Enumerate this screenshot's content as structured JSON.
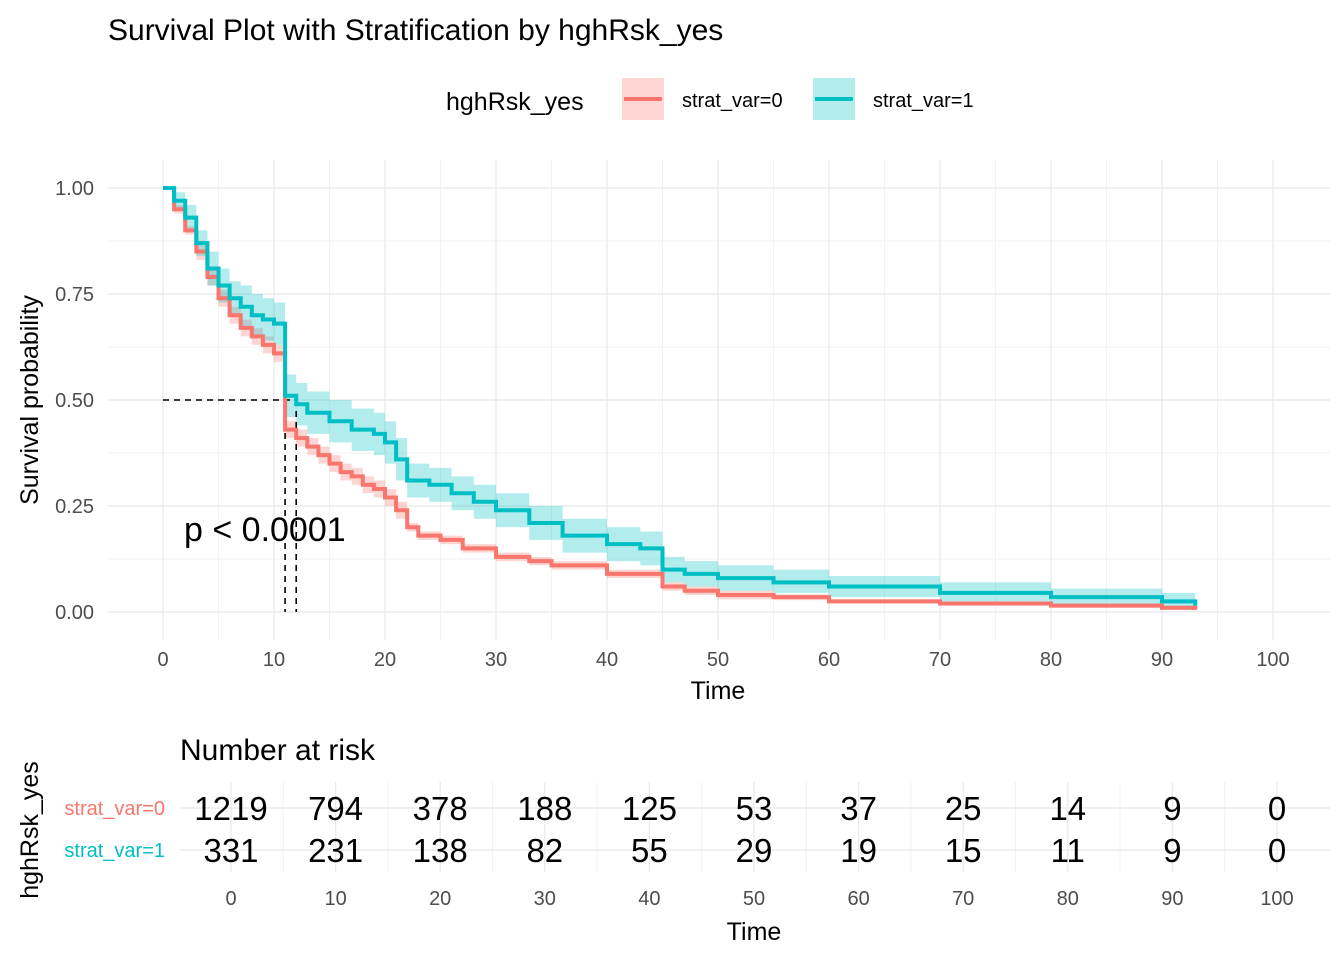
{
  "chart_data": [
    {
      "type": "line",
      "subtype": "kaplan-meier step",
      "title": "Survival Plot with Stratification by hghRsk_yes",
      "xlabel": "Time",
      "ylabel": "Survival probability",
      "xlim": [
        0,
        100
      ],
      "ylim": [
        0,
        1
      ],
      "x_ticks": [
        0,
        10,
        20,
        30,
        40,
        50,
        60,
        70,
        80,
        90,
        100
      ],
      "y_ticks": [
        0,
        0.25,
        0.5,
        0.75,
        1
      ],
      "y_tick_labels": [
        "0.00",
        "0.25",
        "0.50",
        "0.75",
        "1.00"
      ],
      "grid": true,
      "legend": {
        "title": "hghRsk_yes",
        "position": "top"
      },
      "annotation": "p < 0.0001",
      "median_survival": {
        "y": 0.5,
        "x": [
          11,
          12
        ]
      },
      "series": [
        {
          "name": "strat_var=0",
          "color": "#F8766D",
          "x": [
            0,
            1,
            2,
            3,
            4,
            5,
            6,
            7,
            8,
            9,
            10,
            11,
            12,
            13,
            14,
            15,
            16,
            17,
            18,
            19,
            20,
            21,
            22,
            23,
            25,
            27,
            30,
            33,
            35,
            40,
            45,
            47,
            50,
            55,
            60,
            70,
            80,
            90,
            93
          ],
          "y": [
            1.0,
            0.95,
            0.9,
            0.85,
            0.79,
            0.74,
            0.7,
            0.67,
            0.65,
            0.63,
            0.61,
            0.43,
            0.41,
            0.39,
            0.37,
            0.35,
            0.33,
            0.32,
            0.3,
            0.29,
            0.27,
            0.24,
            0.2,
            0.18,
            0.17,
            0.15,
            0.13,
            0.12,
            0.11,
            0.09,
            0.06,
            0.05,
            0.04,
            0.035,
            0.025,
            0.02,
            0.015,
            0.01,
            0.005
          ],
          "lower": [
            1.0,
            0.94,
            0.89,
            0.83,
            0.77,
            0.72,
            0.68,
            0.65,
            0.63,
            0.61,
            0.59,
            0.41,
            0.39,
            0.37,
            0.35,
            0.33,
            0.31,
            0.3,
            0.28,
            0.27,
            0.25,
            0.22,
            0.19,
            0.17,
            0.16,
            0.14,
            0.12,
            0.11,
            0.1,
            0.08,
            0.05,
            0.04,
            0.03,
            0.028,
            0.02,
            0.015,
            0.01,
            0.005,
            0.0
          ],
          "upper": [
            1.0,
            0.96,
            0.91,
            0.87,
            0.81,
            0.76,
            0.72,
            0.69,
            0.67,
            0.65,
            0.63,
            0.45,
            0.43,
            0.41,
            0.39,
            0.37,
            0.35,
            0.34,
            0.32,
            0.31,
            0.29,
            0.26,
            0.21,
            0.19,
            0.18,
            0.16,
            0.14,
            0.13,
            0.12,
            0.1,
            0.07,
            0.06,
            0.05,
            0.042,
            0.03,
            0.025,
            0.02,
            0.015,
            0.01
          ]
        },
        {
          "name": "strat_var=1",
          "color": "#00BFC4",
          "x": [
            0,
            1,
            2,
            3,
            4,
            5,
            6,
            7,
            8,
            9,
            10,
            11,
            12,
            13,
            15,
            17,
            19,
            20,
            21,
            22,
            24,
            26,
            28,
            30,
            33,
            36,
            40,
            43,
            45,
            47,
            50,
            55,
            60,
            70,
            80,
            90,
            93
          ],
          "y": [
            1.0,
            0.97,
            0.93,
            0.87,
            0.81,
            0.77,
            0.74,
            0.72,
            0.7,
            0.69,
            0.68,
            0.51,
            0.49,
            0.47,
            0.45,
            0.43,
            0.42,
            0.4,
            0.36,
            0.31,
            0.3,
            0.28,
            0.26,
            0.24,
            0.21,
            0.18,
            0.16,
            0.15,
            0.1,
            0.09,
            0.08,
            0.07,
            0.06,
            0.045,
            0.035,
            0.025,
            0.015
          ],
          "lower": [
            1.0,
            0.95,
            0.9,
            0.84,
            0.77,
            0.73,
            0.7,
            0.67,
            0.65,
            0.64,
            0.63,
            0.46,
            0.44,
            0.42,
            0.4,
            0.38,
            0.37,
            0.35,
            0.31,
            0.27,
            0.26,
            0.24,
            0.22,
            0.2,
            0.17,
            0.14,
            0.12,
            0.11,
            0.07,
            0.06,
            0.05,
            0.045,
            0.035,
            0.025,
            0.017,
            0.01,
            0.002
          ],
          "upper": [
            1.0,
            0.99,
            0.96,
            0.9,
            0.85,
            0.81,
            0.78,
            0.77,
            0.75,
            0.74,
            0.73,
            0.56,
            0.54,
            0.52,
            0.5,
            0.48,
            0.47,
            0.45,
            0.41,
            0.35,
            0.34,
            0.32,
            0.3,
            0.28,
            0.25,
            0.22,
            0.2,
            0.19,
            0.13,
            0.12,
            0.11,
            0.1,
            0.085,
            0.07,
            0.055,
            0.045,
            0.035
          ]
        }
      ]
    },
    {
      "type": "table",
      "title": "Number at risk",
      "xlabel": "Time",
      "ylabel": "hghRsk_yes",
      "x_ticks": [
        0,
        10,
        20,
        30,
        40,
        50,
        60,
        70,
        80,
        90,
        100
      ],
      "rows": [
        {
          "name": "strat_var=0",
          "color": "#F8766D",
          "values": [
            1219,
            794,
            378,
            188,
            125,
            53,
            37,
            25,
            14,
            9,
            0
          ]
        },
        {
          "name": "strat_var=1",
          "color": "#00BFC4",
          "values": [
            331,
            231,
            138,
            82,
            55,
            29,
            19,
            15,
            11,
            9,
            0
          ]
        }
      ]
    }
  ]
}
